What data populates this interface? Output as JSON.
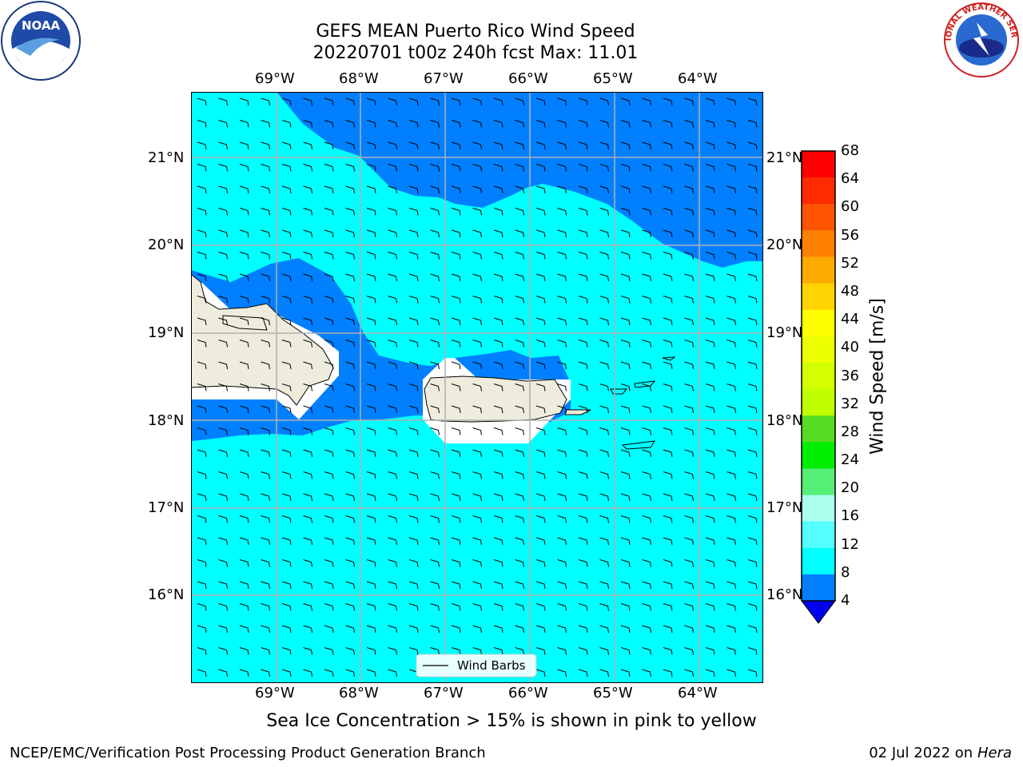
{
  "title": {
    "line1": "GEFS MEAN Puerto Rico Wind Speed",
    "line2": "20220701 t00z 240h fcst   Max: 11.01"
  },
  "lon_labels": [
    "69°W",
    "68°W",
    "67°W",
    "66°W",
    "65°W",
    "64°W"
  ],
  "lat_labels": [
    "21°N",
    "20°N",
    "19°N",
    "18°N",
    "17°N",
    "16°N"
  ],
  "legend": {
    "label": "Wind Barbs"
  },
  "colorbar": {
    "title": "Wind Speed [m/s]",
    "ticks": [
      "68",
      "64",
      "60",
      "56",
      "52",
      "48",
      "44",
      "40",
      "36",
      "32",
      "28",
      "24",
      "20",
      "16",
      "12",
      "8",
      "4"
    ],
    "colors": [
      "#ff0000",
      "#ff2a00",
      "#ff5500",
      "#ff8000",
      "#ffaa00",
      "#ffd400",
      "#ffff00",
      "#ebff00",
      "#d4ff00",
      "#bfff00",
      "#55dd22",
      "#00ee00",
      "#55ee77",
      "#aaffee",
      "#55ffff",
      "#00ffff",
      "#0080ff"
    ],
    "extend_color": "#0000ee"
  },
  "map_colors": {
    "ocean_light": "#00ffff",
    "ocean_dark": "#0080ff",
    "land": "#eeecdc",
    "grid": "#b0b0b0"
  },
  "caption": "Sea Ice Concentration > 15% is shown in pink to yellow",
  "footer": {
    "left": "NCEP/EMC/Verification Post Processing Product Generation Branch",
    "date": "02 Jul 2022 on ",
    "machine": "Hera"
  },
  "logos": {
    "noaa": "NOAA",
    "nws": "NATIONAL WEATHER SERVICE"
  }
}
